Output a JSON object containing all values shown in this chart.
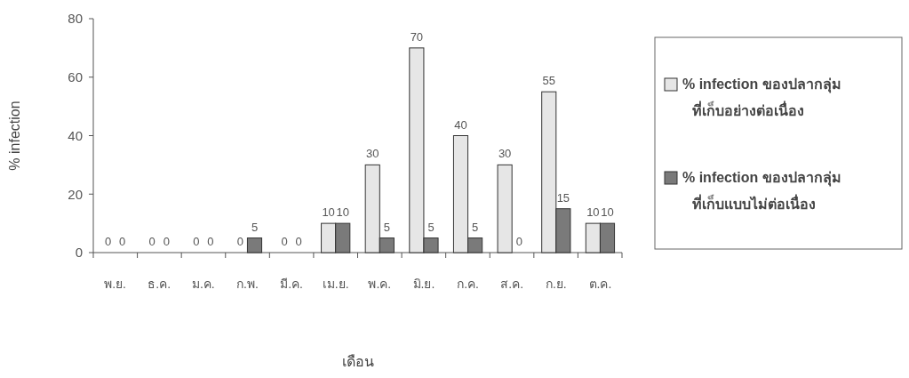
{
  "chart_data": {
    "type": "bar",
    "xlabel": "เดือน",
    "ylabel": "% infection",
    "categories": [
      "พ.ย.",
      "ธ.ค.",
      "ม.ค.",
      "ก.พ.",
      "มี.ค.",
      "เม.ย.",
      "พ.ค.",
      "มิ.ย.",
      "ก.ค.",
      "ส.ค.",
      "ก.ย.",
      "ต.ค."
    ],
    "series": [
      {
        "name": "% infection ของปลากลุ่ม\nที่เก็บอย่างต่อเนื่อง",
        "color": "#e6e6e6",
        "values": [
          0,
          0,
          0,
          0,
          0,
          10,
          30,
          70,
          40,
          30,
          55,
          10
        ]
      },
      {
        "name": "% infection ของปลากลุ่ม\nที่เก็บแบบไม่ต่อเนื่อง",
        "color": "#7a7a7a",
        "values": [
          0,
          0,
          0,
          5,
          0,
          10,
          5,
          5,
          5,
          0,
          15,
          10
        ]
      }
    ],
    "ylim": [
      0,
      80
    ],
    "yticks": [
      0,
      20,
      40,
      60,
      80
    ],
    "data_labels": true,
    "legend": "right",
    "grid": false
  }
}
